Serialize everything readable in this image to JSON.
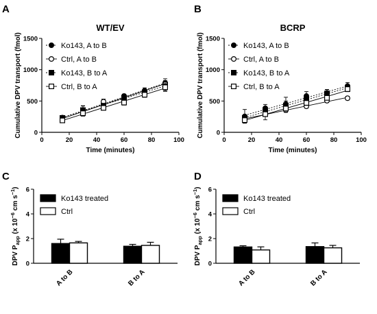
{
  "chart_data": [
    {
      "type": "line",
      "panel": "A",
      "title": "WT/EV",
      "xlabel": "Time (minutes)",
      "ylabel": "Cumulative DPV transport (fmol)",
      "xlim": [
        0,
        100
      ],
      "ylim": [
        0,
        1500
      ],
      "xticks": [
        0,
        20,
        40,
        60,
        80,
        100
      ],
      "yticks": [
        0,
        500,
        1000,
        1500
      ],
      "legend_position": "top-left",
      "x": [
        15,
        30,
        45,
        60,
        75,
        90
      ],
      "series": [
        {
          "name": "Ko143, A to B",
          "marker": "filled-circle",
          "line": "dotted",
          "values": [
            235,
            345,
            450,
            580,
            665,
            790
          ],
          "errors": [
            25,
            75,
            40,
            30,
            45,
            65
          ]
        },
        {
          "name": "Ctrl, A to B",
          "marker": "open-circle",
          "line": "solid",
          "values": [
            200,
            320,
            490,
            560,
            645,
            770
          ],
          "errors": [
            25,
            60,
            40,
            40,
            45,
            55
          ]
        },
        {
          "name": "Ko143, B to A",
          "marker": "filled-square",
          "line": "dotted",
          "values": [
            230,
            355,
            425,
            555,
            640,
            735
          ],
          "errors": [
            30,
            70,
            35,
            35,
            50,
            80
          ]
        },
        {
          "name": "Ctrl, B to A",
          "marker": "open-square",
          "line": "solid",
          "values": [
            190,
            305,
            390,
            475,
            600,
            720
          ],
          "errors": [
            25,
            45,
            35,
            40,
            40,
            55
          ]
        }
      ]
    },
    {
      "type": "line",
      "panel": "B",
      "title": "BCRP",
      "xlabel": "Time (minutes)",
      "ylabel": "Cumulative DPV transport (fmol)",
      "xlim": [
        0,
        100
      ],
      "ylim": [
        0,
        1500
      ],
      "xticks": [
        0,
        20,
        40,
        60,
        80,
        100
      ],
      "yticks": [
        0,
        500,
        1000,
        1500
      ],
      "legend_position": "top-left",
      "x": [
        15,
        30,
        45,
        60,
        75,
        90
      ],
      "series": [
        {
          "name": "Ko143, A to B",
          "marker": "filled-circle",
          "line": "dotted",
          "values": [
            255,
            385,
            450,
            580,
            625,
            740
          ],
          "errors": [
            110,
            60,
            110,
            70,
            60,
            55
          ]
        },
        {
          "name": "Ctrl, A to B",
          "marker": "open-circle",
          "line": "solid",
          "values": [
            200,
            300,
            355,
            415,
            505,
            545
          ],
          "errors": [
            30,
            40,
            35,
            30,
            30,
            30
          ]
        },
        {
          "name": "Ko143, B to A",
          "marker": "filled-square",
          "line": "dotted",
          "values": [
            230,
            330,
            430,
            520,
            620,
            705
          ],
          "errors": [
            40,
            50,
            70,
            45,
            60,
            55
          ]
        },
        {
          "name": "Ctrl, B to A",
          "marker": "open-square",
          "line": "solid",
          "values": [
            195,
            290,
            380,
            470,
            550,
            690
          ],
          "errors": [
            40,
            90,
            60,
            40,
            30,
            40
          ]
        }
      ]
    },
    {
      "type": "bar",
      "panel": "C",
      "ylabel_main": "DPV P",
      "ylabel_sub": "app",
      "ylabel_rest": " (x 10",
      "ylabel_exp1": "−6",
      "ylabel_mid": " cm s",
      "ylabel_exp2": "−1",
      "ylabel_end": ")",
      "ylim": [
        0,
        6
      ],
      "yticks": [
        0,
        2,
        4,
        6
      ],
      "legend_position": "top-left",
      "categories": [
        "A to B",
        "B to A"
      ],
      "series": [
        {
          "name": "Ko143 treated",
          "fill": "#000000",
          "values": [
            1.6,
            1.38
          ],
          "errors": [
            0.35,
            0.15
          ]
        },
        {
          "name": "Ctrl",
          "fill": "#ffffff",
          "values": [
            1.65,
            1.45
          ],
          "errors": [
            0.12,
            0.25
          ]
        }
      ]
    },
    {
      "type": "bar",
      "panel": "D",
      "ylabel_main": "DPV P",
      "ylabel_sub": "app",
      "ylabel_rest": " (x 10",
      "ylabel_exp1": "−6",
      "ylabel_mid": " cm s",
      "ylabel_exp2": "−1",
      "ylabel_end": ")",
      "ylim": [
        0,
        6
      ],
      "yticks": [
        0,
        2,
        4,
        6
      ],
      "legend_position": "top-left",
      "categories": [
        "A to B",
        "B to A"
      ],
      "series": [
        {
          "name": "Ko143 treated",
          "fill": "#000000",
          "values": [
            1.32,
            1.35
          ],
          "errors": [
            0.1,
            0.3
          ]
        },
        {
          "name": "Ctrl",
          "fill": "#ffffff",
          "values": [
            1.08,
            1.25
          ],
          "errors": [
            0.25,
            0.2
          ]
        }
      ]
    }
  ]
}
